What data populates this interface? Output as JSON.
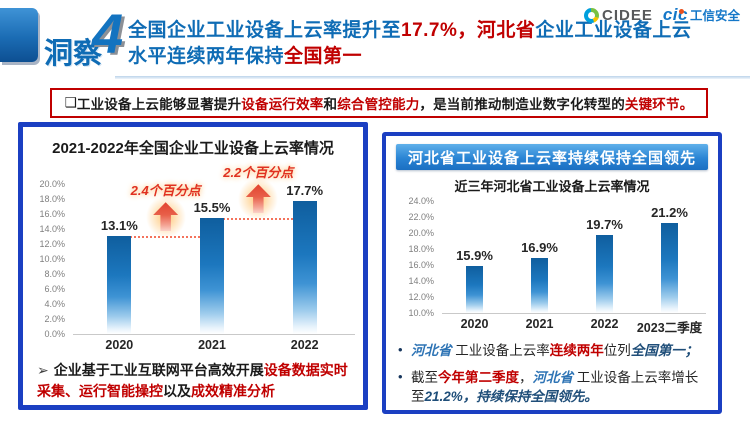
{
  "colors": {
    "title_blue": "#0F6CB5",
    "accent_red": "#C00000",
    "panel_border_blue": "#1B3FC2",
    "bar_blue_top": "#0F5E9E",
    "right_header_blue": "#1B6FC2"
  },
  "header": {
    "badge_label": "洞察",
    "badge_number": "4",
    "title_runs": [
      {
        "t": "全国企业工业设备上云率提升至",
        "s": "b"
      },
      {
        "t": "17.7%，河北省",
        "s": "r"
      },
      {
        "t": "企业工业设备上云水平连续两年保持",
        "s": "b"
      },
      {
        "t": "全国第一",
        "s": "r"
      }
    ],
    "logos": {
      "cidee": "CIDEE",
      "cic_mark": "cic",
      "cic_suffix": "工信安全"
    }
  },
  "statement": {
    "runs": [
      {
        "t": "❑",
        "s": "kb"
      },
      {
        "t": "工业设备上云能够显著提升",
        "s": "kb"
      },
      {
        "t": "设备运行效率",
        "s": "r"
      },
      {
        "t": "和",
        "s": "kb"
      },
      {
        "t": "综合管控能力",
        "s": "r"
      },
      {
        "t": "，是当前推动制造业数字化转型的",
        "s": "kb"
      },
      {
        "t": "关键环节。",
        "s": "r"
      }
    ]
  },
  "left_panel": {
    "note_bullet": "➢",
    "note_runs": [
      {
        "t": "企业基于工业互联网平台高效开展",
        "s": "kb"
      },
      {
        "t": "设备数据实时采集、运行智能操控",
        "s": "r"
      },
      {
        "t": "以及",
        "s": "kb"
      },
      {
        "t": "成效精准分析",
        "s": "r"
      }
    ]
  },
  "right_panel": {
    "header": "河北省工业设备上云率持续保持全国领先",
    "bullets": [
      {
        "runs": [
          {
            "t": "河北省",
            "s": "bi"
          },
          {
            "t": " 工业设备上云率",
            "s": "k"
          },
          {
            "t": "连续两年",
            "s": "r"
          },
          {
            "t": "位列",
            "s": "k"
          },
          {
            "t": "全国第一；",
            "s": "ni"
          }
        ]
      },
      {
        "runs": [
          {
            "t": "截至",
            "s": "k"
          },
          {
            "t": "今年第二季度",
            "s": "r"
          },
          {
            "t": "，",
            "s": "k"
          },
          {
            "t": "河北省",
            "s": "bi"
          },
          {
            "t": " 工业设备上云率增长至",
            "s": "k"
          },
          {
            "t": "21.2%，持续保持全国领先。",
            "s": "ni"
          }
        ]
      }
    ]
  },
  "chart_data": [
    {
      "type": "bar",
      "title": "2021-2022年全国企业工业设备上云率情况",
      "categories": [
        "2020",
        "2021",
        "2022"
      ],
      "values": [
        13.1,
        15.5,
        17.7
      ],
      "value_labels": [
        "13.1%",
        "15.5%",
        "17.7%"
      ],
      "ylabel": "",
      "ylim": [
        0,
        20
      ],
      "ytick_step": 2,
      "ytick_labels": [
        "0.0%",
        "2.0%",
        "4.0%",
        "6.0%",
        "8.0%",
        "10.0%",
        "12.0%",
        "14.0%",
        "16.0%",
        "18.0%",
        "20.0%"
      ],
      "grid": false,
      "legend": "none",
      "annotations": [
        {
          "text": "2.4个百分点",
          "from": 0,
          "to": 1
        },
        {
          "text": "2.2个百分点",
          "from": 1,
          "to": 2
        }
      ]
    },
    {
      "type": "bar",
      "title": "近三年河北省工业设备上云率情况",
      "categories": [
        "2020",
        "2021",
        "2022",
        "2023二季度"
      ],
      "values": [
        15.9,
        16.9,
        19.7,
        21.2
      ],
      "value_labels": [
        "15.9%",
        "16.9%",
        "19.7%",
        "21.2%"
      ],
      "ylabel": "",
      "ylim": [
        10,
        24
      ],
      "ytick_step": 2,
      "ytick_labels": [
        "10.0%",
        "12.0%",
        "14.0%",
        "16.0%",
        "18.0%",
        "20.0%",
        "22.0%",
        "24.0%"
      ],
      "grid": false,
      "legend": "none"
    }
  ]
}
